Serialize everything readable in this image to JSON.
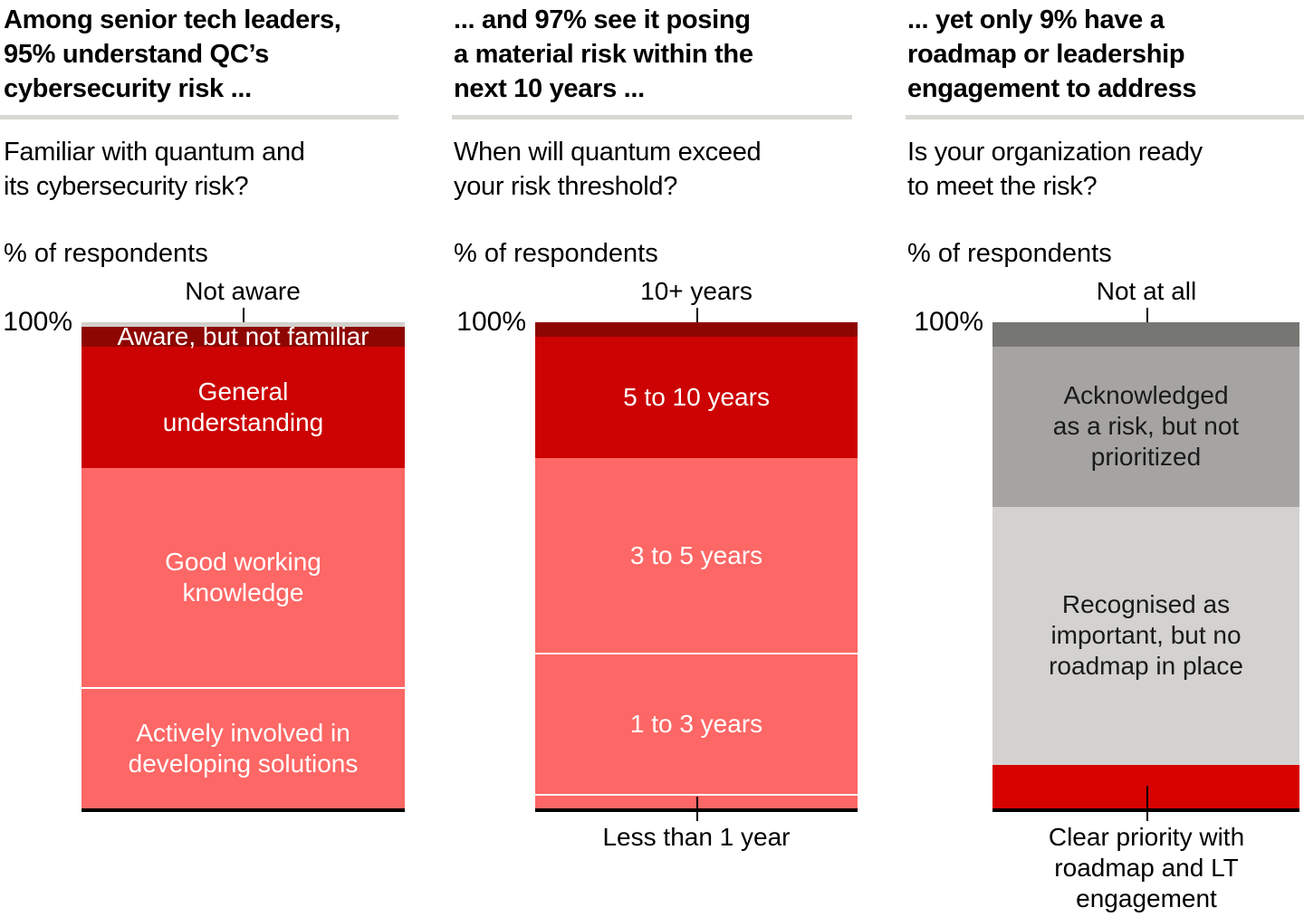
{
  "colors": {
    "gray_cap": "#d2d0cb",
    "dark_red": "#8e0602",
    "crimson": "#cc0302",
    "pink": "#fd6765",
    "bright_red": "#d60301",
    "dark_gray": "#767673",
    "mid_gray": "#a5a4a2",
    "light_gray": "#d3d2d0",
    "divider": "#d8d7d2",
    "axis": "#000000"
  },
  "chart_data": [
    {
      "type": "bar",
      "stacked": true,
      "orientation": "vertical",
      "title": "Among senior tech leaders,\n95% understand QC’s\ncybersecurity risk ...",
      "question": "Familiar with quantum and\nits cybersecurity risk?",
      "ylabel": "% of respondents",
      "axis_top": "100%",
      "ylim": [
        0,
        100
      ],
      "categories": [
        "Not aware",
        "Aware, but not familiar",
        "General\nunderstanding",
        "Good working\nknowledge",
        "Actively involved in\ndeveloping solutions"
      ],
      "values": [
        1,
        4,
        25,
        45,
        25
      ],
      "colors": [
        "#d2d0cb",
        "#8e0602",
        "#cc0302",
        "#fd6765",
        "#fd6765"
      ]
    },
    {
      "type": "bar",
      "stacked": true,
      "orientation": "vertical",
      "title": "... and 97% see it posing\na material risk within the\nnext 10 years ...",
      "question": "When will quantum exceed\nyour risk threshold?",
      "ylabel": "% of respondents",
      "axis_top": "100%",
      "ylim": [
        0,
        100
      ],
      "categories": [
        "10+ years",
        "5 to 10 years",
        "3 to 5 years",
        "1 to 3 years",
        "Less than 1 year"
      ],
      "values": [
        3,
        25,
        40,
        29,
        3
      ],
      "colors": [
        "#8e0602",
        "#cc0302",
        "#fd6765",
        "#fd6765",
        "#fd6765"
      ]
    },
    {
      "type": "bar",
      "stacked": true,
      "orientation": "vertical",
      "title": "... yet only 9% have a\nroadmap or leadership\nengagement to address",
      "question": "Is your organization ready\nto meet the risk?",
      "ylabel": "% of respondents",
      "axis_top": "100%",
      "ylim": [
        0,
        100
      ],
      "categories": [
        "Not at all",
        "Acknowledged\nas a risk, but not\nprioritized",
        "Recognised as\nimportant, but no\nroadmap in place",
        "Clear priority with\nroadmap and LT\nengagement"
      ],
      "values": [
        5,
        33,
        53,
        9
      ],
      "colors": [
        "#767673",
        "#a5a4a2",
        "#d3d2d0",
        "#d60301"
      ]
    }
  ]
}
